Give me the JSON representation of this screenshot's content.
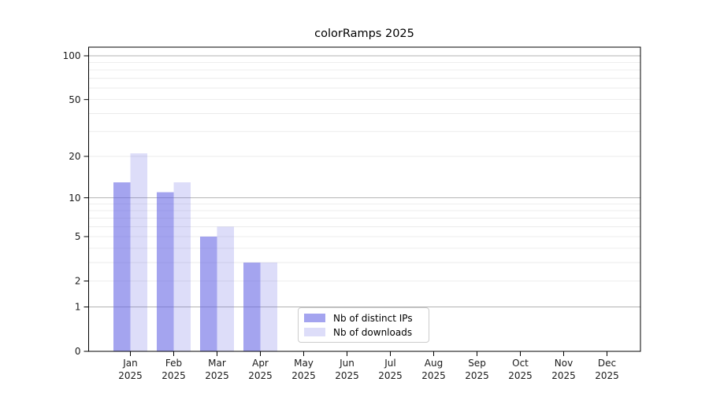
{
  "chart_data": {
    "type": "bar",
    "title": "colorRamps 2025",
    "categories": [
      "Jan",
      "Feb",
      "Mar",
      "Apr",
      "May",
      "Jun",
      "Jul",
      "Aug",
      "Sep",
      "Oct",
      "Nov",
      "Dec"
    ],
    "x_year_label": "2025",
    "series": [
      {
        "name": "Nb of distinct IPs",
        "base_color": "#6262e4",
        "alpha": 0.58,
        "rendered_color": "#a4a4f3",
        "values": [
          13,
          11,
          5,
          3,
          0,
          0,
          0,
          0,
          0,
          0,
          0,
          0
        ]
      },
      {
        "name": "Nb of downloads",
        "base_color": "#6262e4",
        "alpha": 0.22,
        "rendered_color": "#dcdcf9",
        "values": [
          21,
          13,
          6,
          3,
          0,
          0,
          0,
          0,
          0,
          0,
          0,
          0
        ]
      }
    ],
    "y_axis": {
      "scale": "log1p",
      "tick_values": [
        0,
        1,
        2,
        5,
        10,
        20,
        50,
        100
      ],
      "major_gridlines": [
        1,
        10,
        100
      ],
      "minor_gridlines": [
        2,
        3,
        4,
        5,
        6,
        7,
        8,
        9,
        20,
        30,
        40,
        50,
        60,
        70,
        80,
        90
      ],
      "ylim": [
        0,
        115
      ]
    },
    "grid": true,
    "legend_position": "lower center",
    "colors": {
      "axis": "#000000",
      "tick_text": "#1a1a1a",
      "major_grid": "#b2b2b2",
      "minor_grid": "#e8e8e8",
      "background": "#ffffff",
      "legend_border": "#cccccc"
    }
  }
}
